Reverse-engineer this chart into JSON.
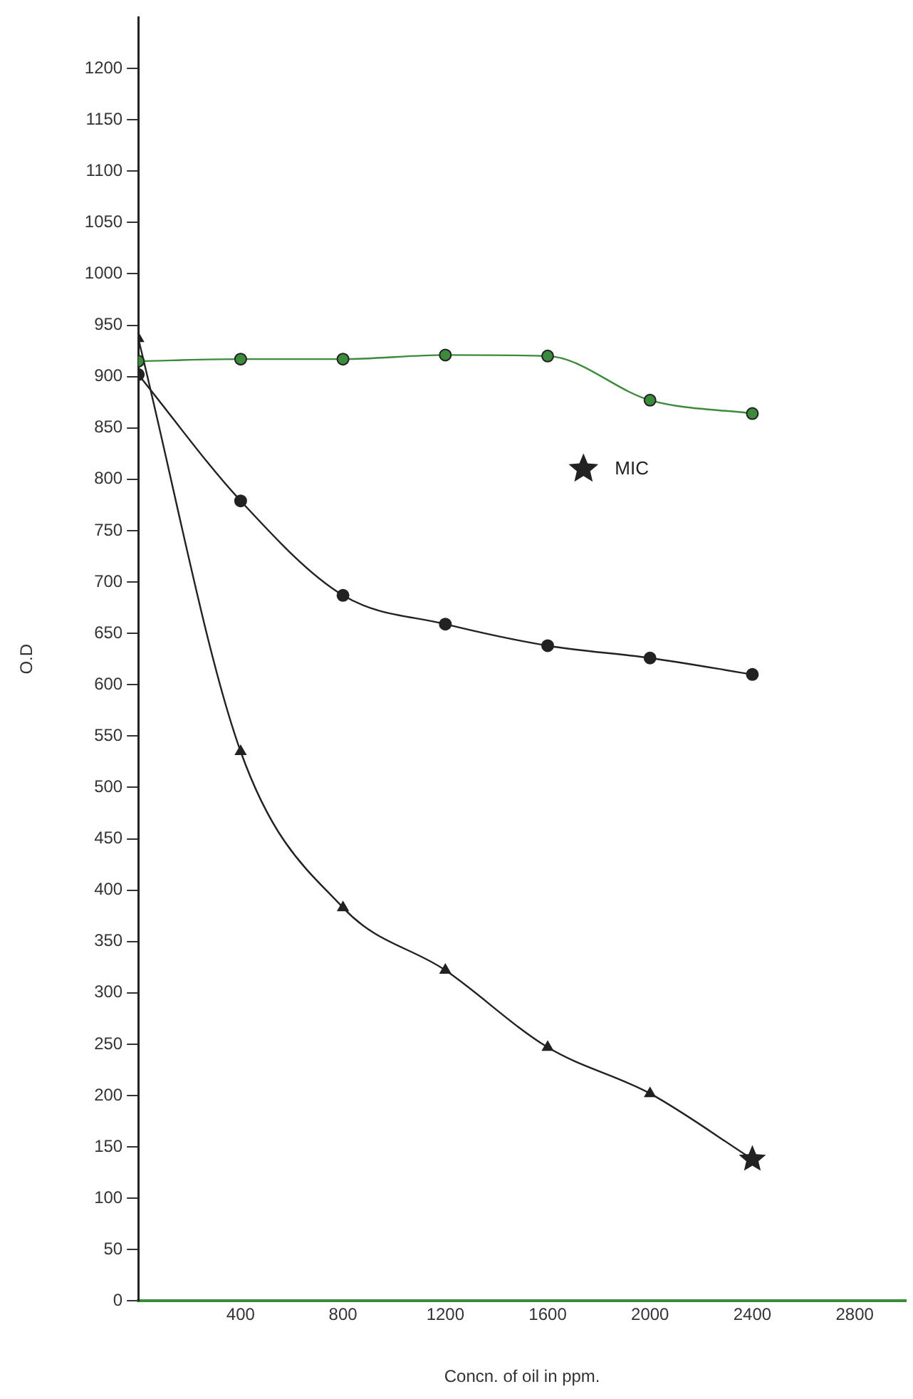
{
  "chart_data": {
    "type": "line",
    "xlabel": "Concn. of oil in ppm.",
    "ylabel": "O.D",
    "x": [
      0,
      400,
      800,
      1200,
      1600,
      2000,
      2400
    ],
    "xlim": [
      0,
      3000
    ],
    "xticks": [
      400,
      800,
      1200,
      1600,
      2000,
      2400,
      2800
    ],
    "ylim": [
      0,
      1250
    ],
    "yticks": [
      0,
      50,
      100,
      150,
      200,
      250,
      300,
      350,
      400,
      450,
      500,
      550,
      600,
      650,
      700,
      750,
      800,
      850,
      900,
      950,
      1000,
      1050,
      1100,
      1150,
      1200
    ],
    "grid": false,
    "legend": "top right",
    "series": [
      {
        "color": "#3c8a3c",
        "values": [
          915,
          917,
          917,
          921,
          920,
          877,
          864
        ],
        "marker": "circle"
      },
      {
        "color": "#222222",
        "values": [
          902,
          779,
          687,
          659,
          638,
          626,
          610
        ],
        "marker": "circle"
      },
      {
        "color": "#222222",
        "values": [
          937,
          535,
          383,
          322,
          247,
          202,
          138
        ],
        "marker": "triangle"
      },
      {
        "type": "scatter",
        "name": "MIC",
        "color": "#222222",
        "x": [
          2400
        ],
        "values": [
          138
        ],
        "marker": "star"
      }
    ]
  }
}
